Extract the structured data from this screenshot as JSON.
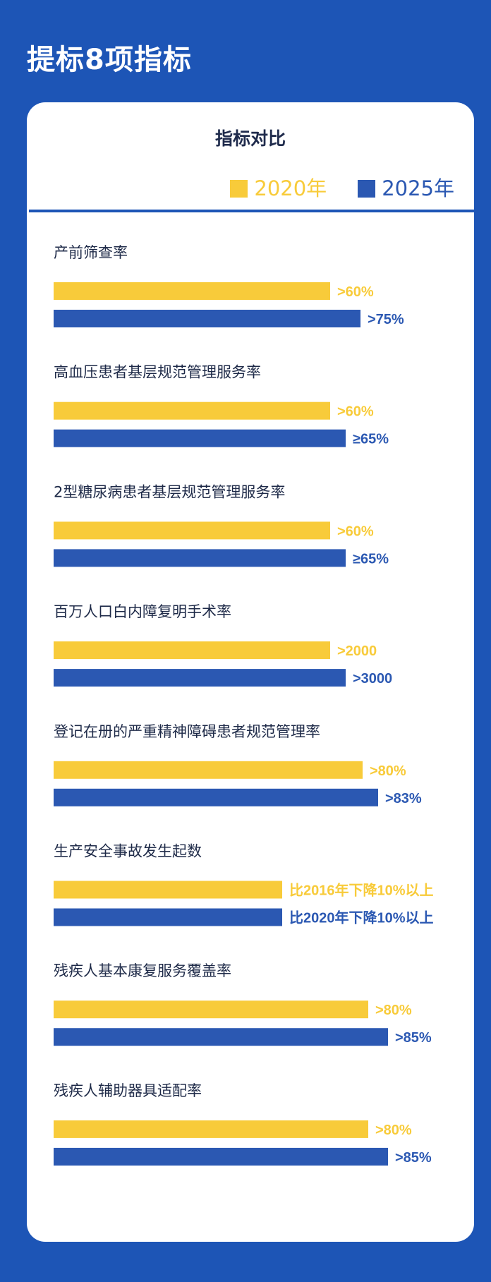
{
  "page_title": "提标8项指标",
  "card_title": "指标对比",
  "colors": {
    "background": "#1d55b6",
    "y2020": "#f8cb3a",
    "y2025": "#2b58b2",
    "label_text": "#1e2a48"
  },
  "legend": [
    {
      "label": "2020年",
      "color": "#f8cb3a"
    },
    {
      "label": "2025年",
      "color": "#2b58b2"
    }
  ],
  "chart_data": {
    "type": "bar",
    "orientation": "horizontal",
    "title": "指标对比",
    "xlabel": "",
    "ylabel": "",
    "grid": false,
    "legend_position": "top-right",
    "series_names": [
      "2020年",
      "2025年"
    ],
    "categories": [
      "产前筛查率",
      "高血压患者基层规范管理服务率",
      "2型糖尿病患者基层规范管理服务率",
      "百万人口白内障复明手术率",
      "登记在册的严重精神障碍患者规范管理率",
      "生产安全事故发生起数",
      "残疾人基本康复服务覆盖率",
      "残疾人辅助器具适配率"
    ],
    "series": [
      {
        "name": "2020年",
        "value_labels": [
          ">60%",
          ">60%",
          ">60%",
          ">2000",
          ">80%",
          "比2016年下降10%以上",
          ">80%",
          ">80%"
        ]
      },
      {
        "name": "2025年",
        "value_labels": [
          ">75%",
          "≥65%",
          "≥65%",
          ">3000",
          ">83%",
          "比2020年下降10%以上",
          ">85%",
          ">85%"
        ]
      }
    ]
  }
}
